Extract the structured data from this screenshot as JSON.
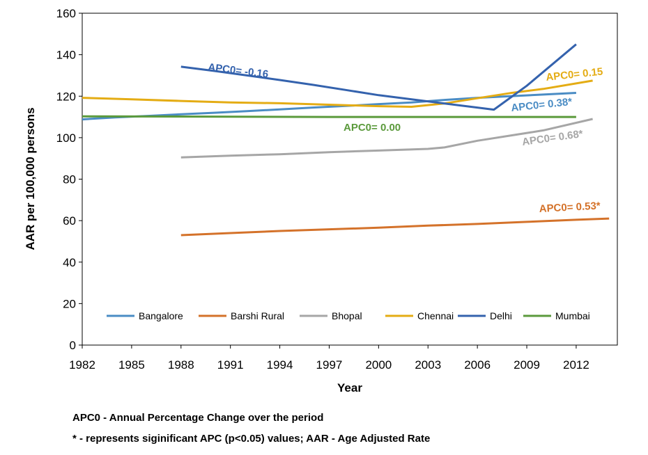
{
  "chart_data": {
    "type": "line",
    "xlabel": "Year",
    "ylabel": "AAR per 100,000 persons",
    "xlim": [
      1982,
      2014.5
    ],
    "ylim": [
      0,
      160
    ],
    "x_ticks": [
      "1982",
      "1985",
      "1988",
      "1991",
      "1994",
      "1997",
      "2000",
      "2003",
      "2006",
      "2009",
      "2012"
    ],
    "y_ticks": [
      "0",
      "20",
      "40",
      "60",
      "80",
      "100",
      "120",
      "140",
      "160"
    ],
    "grid": false,
    "legend_position": "bottom-inside",
    "series": [
      {
        "name": "Bangalore",
        "color": "#4a8cc4",
        "points": [
          [
            1982,
            108.8
          ],
          [
            1984,
            109.8
          ],
          [
            1986,
            110.5
          ],
          [
            1988,
            111.3
          ],
          [
            1990,
            112
          ],
          [
            1992,
            112.8
          ],
          [
            1994,
            113.6
          ],
          [
            1996,
            114.5
          ],
          [
            1998,
            115.3
          ],
          [
            2000,
            116.2
          ],
          [
            2002,
            117
          ],
          [
            2004,
            118.2
          ],
          [
            2006,
            119.2
          ],
          [
            2008,
            120
          ],
          [
            2010,
            120.8
          ],
          [
            2012,
            121.6
          ]
        ]
      },
      {
        "name": "Barshi Rural",
        "color": "#d4722a",
        "points": [
          [
            1988,
            53
          ],
          [
            1991,
            54
          ],
          [
            1994,
            55
          ],
          [
            1997,
            55.8
          ],
          [
            2000,
            56.6
          ],
          [
            2003,
            57.6
          ],
          [
            2006,
            58.4
          ],
          [
            2009,
            59.4
          ],
          [
            2012,
            60.4
          ],
          [
            2014,
            61
          ]
        ]
      },
      {
        "name": "Bhopal",
        "color": "#a6a6a6",
        "points": [
          [
            1988,
            90.5
          ],
          [
            1991,
            91.3
          ],
          [
            1994,
            92
          ],
          [
            1997,
            93
          ],
          [
            2000,
            93.8
          ],
          [
            2003,
            94.6
          ],
          [
            2004,
            95.3
          ],
          [
            2006,
            98.5
          ],
          [
            2008,
            101
          ],
          [
            2010,
            103.5
          ],
          [
            2013,
            109
          ]
        ]
      },
      {
        "name": "Chennai",
        "color": "#e4ac14",
        "points": [
          [
            1982,
            119.2
          ],
          [
            1985,
            118.5
          ],
          [
            1988,
            117.7
          ],
          [
            1991,
            117
          ],
          [
            1994,
            116.6
          ],
          [
            1997,
            115.9
          ],
          [
            2000,
            115.2
          ],
          [
            2002,
            114.9
          ],
          [
            2004,
            116.5
          ],
          [
            2006,
            119
          ],
          [
            2008,
            121.5
          ],
          [
            2010,
            123.5
          ],
          [
            2013,
            127.5
          ]
        ]
      },
      {
        "name": "Delhi",
        "color": "#3462ad",
        "points": [
          [
            1988,
            134.2
          ],
          [
            1990,
            132.2
          ],
          [
            1992,
            130
          ],
          [
            1994,
            127.8
          ],
          [
            1996,
            125.5
          ],
          [
            1998,
            123
          ],
          [
            2000,
            120.5
          ],
          [
            2002,
            118.5
          ],
          [
            2004,
            116.5
          ],
          [
            2006,
            114.5
          ],
          [
            2007,
            113.5
          ],
          [
            2009,
            125
          ],
          [
            2012,
            145
          ]
        ]
      },
      {
        "name": "Mumbai",
        "color": "#5b9a3c",
        "points": [
          [
            1982,
            110.3
          ],
          [
            1997,
            110
          ],
          [
            2012,
            110
          ]
        ]
      }
    ],
    "annotations": [
      {
        "text": "APC0= -0.16",
        "series": "Delhi",
        "color": "#3462ad"
      },
      {
        "text": "APC0= 0.15",
        "series": "Chennai",
        "color": "#e4ac14"
      },
      {
        "text": "APC0= 0.38*",
        "series": "Bangalore",
        "color": "#4a8cc4"
      },
      {
        "text": "APC0= 0.00",
        "series": "Mumbai",
        "color": "#5b9a3c"
      },
      {
        "text": "APC0= 0.68*",
        "series": "Bhopal",
        "color": "#a6a6a6"
      },
      {
        "text": "APC0= 0.53*",
        "series": "Barshi Rural",
        "color": "#d4722a"
      }
    ]
  },
  "footnotes": {
    "line1": "APC0 - Annual Percentage Change over the period",
    "line2": "* - represents siginificant APC (p<0.05) values; AAR - Age Adjusted Rate"
  }
}
